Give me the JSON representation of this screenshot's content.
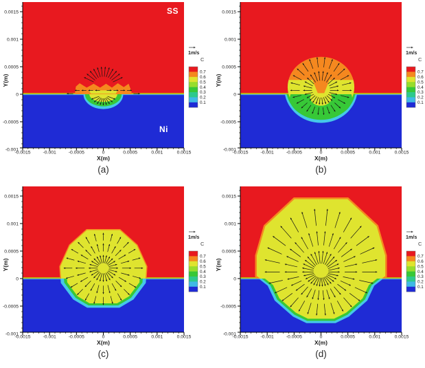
{
  "figure": {
    "region_labels": {
      "top": "SS",
      "bottom": "Ni"
    }
  },
  "axes": {
    "xlabel": "X(m)",
    "ylabel": "Y(m)",
    "xlim": [
      -0.0015,
      0.0015
    ],
    "xticks": [
      -0.0015,
      -0.001,
      -0.0005,
      0,
      0.0005,
      0.001,
      0.0015
    ],
    "xtick_labels": [
      "-0.0015",
      "-0.001",
      "-0.0005",
      "0",
      "0.0005",
      "0.001",
      "0.0015"
    ],
    "yticks": [
      0.0015,
      0.001,
      0.0005,
      0,
      -0.0005,
      -0.001
    ],
    "ytick_labels": [
      "0.0015",
      "0.001",
      "0.0005",
      "0",
      "-0.0005",
      "-0.001"
    ],
    "minor_tick_step": 0.0001
  },
  "colorbar": {
    "title": "C",
    "tick_labels": [
      "0.7",
      "0.6",
      "0.5",
      "0.4",
      "0.3",
      "0.2",
      "0.1"
    ],
    "band_colors_top_to_bottom": [
      "#e8191f",
      "#f5881f",
      "#dfe42f",
      "#97dd2c",
      "#37c837",
      "#2dc98c",
      "#3fb9e6",
      "#1f2bd5"
    ]
  },
  "vector_scale_label": "1m/s",
  "colors": {
    "ss_region": "#e8191f",
    "ni_region": "#1f2bd5",
    "interface_top": "#b3e114",
    "interface_bottom": "#49c6e8",
    "pool_orange": "#f5881f",
    "pool_yellow": "#dfe42f",
    "pool_green": "#37c837",
    "pool_cyan": "#45c8e8",
    "vector": "#141414",
    "text": "#222222"
  },
  "chart_data": [
    {
      "id": "a",
      "type": "contour-vector",
      "caption": "(a)",
      "show_region_labels": true,
      "pool": [
        {
          "type": "poly",
          "fill": "orange",
          "points": [
            [
              -0.00053,
              0
            ],
            [
              -0.00051,
              0.00014
            ],
            [
              -0.00044,
              0.0002
            ],
            [
              -0.00031,
              0.00012
            ],
            [
              -0.00018,
              0.00019
            ],
            [
              -6e-05,
              0.00012
            ],
            [
              5e-05,
              0.00019
            ],
            [
              0.00016,
              0.00012
            ],
            [
              0.00027,
              0.0002
            ],
            [
              0.00038,
              0.00013
            ],
            [
              0.00047,
              0.00019
            ],
            [
              0.00052,
              6e-05
            ],
            [
              0.00053,
              0
            ]
          ]
        },
        {
          "type": "ellipse",
          "fill": "cyan",
          "cx": 0,
          "cy": 0,
          "rx": 0.00037,
          "ry": 0.00027,
          "clip": "below"
        },
        {
          "type": "ellipse",
          "fill": "green",
          "cx": 0,
          "cy": 0,
          "rx": 0.00034,
          "ry": 0.00022,
          "clip": "below"
        },
        {
          "type": "poly",
          "fill": "yellow",
          "points": [
            [
              -0.00027,
              7e-05
            ],
            [
              0.00027,
              7e-05
            ],
            [
              0.00023,
              1e-05
            ],
            [
              -0.00023,
              1e-05
            ]
          ]
        },
        {
          "type": "ellipse",
          "fill": "yellow",
          "cx": 0,
          "cy": 0,
          "rx": 0.00026,
          "ry": 0.00014,
          "clip": "below"
        }
      ],
      "vectors": [
        {
          "kind": "radial",
          "cx": 0,
          "cy": 0.00014,
          "a0": 25,
          "a1": 155,
          "n": 12,
          "rings": [
            [
              0.5,
              1.0
            ]
          ],
          "r_up": 0.00036,
          "r_side": 0.00042,
          "r_down": 0.0002
        },
        {
          "kind": "row",
          "y": 7e-05,
          "x0": -0.00044,
          "x1": 0.00044,
          "n": 8,
          "len": 9e-05
        },
        {
          "kind": "radial",
          "cx": 0,
          "cy": -1e-05,
          "a0": 200,
          "a1": 340,
          "n": 9,
          "rings": [
            [
              0.35,
              1.0
            ]
          ],
          "r_up": 0.0002,
          "r_side": 0.00026,
          "r_down": 0.00019
        },
        {
          "kind": "row",
          "y": 1e-05,
          "x0": -0.00056,
          "x1": 0.00056,
          "n": 2,
          "len": 0.00012
        }
      ]
    },
    {
      "id": "b",
      "type": "contour-vector",
      "caption": "(b)",
      "show_region_labels": false,
      "pool": [
        {
          "type": "ellipse",
          "fill": "cyan",
          "cx": 0,
          "cy": 0.0001,
          "rx": 0.00068,
          "ry": 0.00062,
          "clip": "below"
        },
        {
          "type": "ellipse",
          "fill": "green",
          "cx": 0,
          "cy": 0.00011,
          "rx": 0.00065,
          "ry": 0.000575,
          "clip": "below"
        },
        {
          "type": "ellipse",
          "fill": "yellow",
          "cx": 0,
          "cy": 0.00013,
          "rx": 0.00062,
          "ry": 0.00054
        },
        {
          "type": "ellipse",
          "fill": "orange",
          "cx": 0,
          "cy": 0.00016,
          "rx": 0.00061,
          "ry": 0.00052,
          "clip_above_y": 0.00026
        },
        {
          "type": "ellipse",
          "fill": "green",
          "cx": 0,
          "cy": -8e-05,
          "rx": 0.00058,
          "ry": 0.00036,
          "clip": "below"
        },
        {
          "type": "ellipse",
          "fill": "yellow",
          "cx": 0,
          "cy": -6e-05,
          "rx": 0.0002,
          "ry": 0.00015,
          "clip": "below"
        },
        {
          "type": "poly",
          "fill": "orange",
          "points": [
            [
              -0.00017,
              0.00029
            ],
            [
              0.00017,
              0.00029
            ],
            [
              6e-05,
              2e-05
            ],
            [
              -6e-05,
              2e-05
            ]
          ]
        }
      ],
      "vectors": [
        {
          "kind": "radial",
          "cx": 0,
          "cy": 7e-05,
          "a0": 0,
          "a1": 346,
          "n": 26,
          "rings": [
            [
              0.28,
              0.55
            ],
            [
              0.66,
              0.95
            ]
          ],
          "r_up": 0.00064,
          "r_side": 0.0006,
          "r_down": 0.00047
        }
      ]
    },
    {
      "id": "c",
      "type": "contour-vector",
      "caption": "(c)",
      "show_region_labels": false,
      "pool": [
        {
          "type": "poly",
          "fill": "cyan",
          "clip": "below",
          "points": [
            [
              -0.00031,
              0.00089
            ],
            [
              0.00031,
              0.00089
            ],
            [
              0.00063,
              0.00061
            ],
            [
              0.00081,
              0.00022
            ],
            [
              0.00079,
              -8e-05
            ],
            [
              0.00056,
              -0.00038
            ],
            [
              0.0003,
              -0.00053
            ],
            [
              -0.0003,
              -0.00053
            ],
            [
              -0.00056,
              -0.00038
            ],
            [
              -0.00079,
              -8e-05
            ],
            [
              -0.00081,
              0.00022
            ],
            [
              -0.00063,
              0.00061
            ]
          ]
        },
        {
          "type": "poly",
          "fill": "green",
          "clip": "below",
          "scale": 0.92,
          "points": [
            [
              -0.00031,
              0.00089
            ],
            [
              0.00031,
              0.00089
            ],
            [
              0.00063,
              0.00061
            ],
            [
              0.00081,
              0.00022
            ],
            [
              0.00079,
              -8e-05
            ],
            [
              0.00056,
              -0.00038
            ],
            [
              0.0003,
              -0.00053
            ],
            [
              -0.0003,
              -0.00053
            ],
            [
              -0.00056,
              -0.00038
            ],
            [
              -0.00079,
              -8e-05
            ],
            [
              -0.00081,
              0.00022
            ],
            [
              -0.00063,
              0.00061
            ]
          ]
        },
        {
          "type": "poly",
          "fill": "yellow",
          "clip": "below",
          "scale": 0.85,
          "points": [
            [
              -0.00031,
              0.00089
            ],
            [
              0.00031,
              0.00089
            ],
            [
              0.00063,
              0.00061
            ],
            [
              0.00081,
              0.00022
            ],
            [
              0.00079,
              -8e-05
            ],
            [
              0.00056,
              -0.00038
            ],
            [
              0.0003,
              -0.00053
            ],
            [
              -0.0003,
              -0.00053
            ],
            [
              -0.00056,
              -0.00038
            ],
            [
              -0.00079,
              -8e-05
            ],
            [
              -0.00081,
              0.00022
            ],
            [
              -0.00063,
              0.00061
            ]
          ]
        },
        {
          "type": "poly",
          "fill": "yellow",
          "clip": "above",
          "stroke": "orange",
          "stroke_w": 1.5,
          "points": [
            [
              -0.00031,
              0.00089
            ],
            [
              0.00031,
              0.00089
            ],
            [
              0.00063,
              0.00061
            ],
            [
              0.00081,
              0.00022
            ],
            [
              0.00079,
              -8e-05
            ],
            [
              0.00056,
              -0.00038
            ],
            [
              0.0003,
              -0.00053
            ],
            [
              -0.0003,
              -0.00053
            ],
            [
              -0.00056,
              -0.00038
            ],
            [
              -0.00079,
              -8e-05
            ],
            [
              -0.00081,
              0.00022
            ],
            [
              -0.00063,
              0.00061
            ]
          ]
        }
      ],
      "vectors": [
        {
          "kind": "radial",
          "cx": 0,
          "cy": 0.00019,
          "a0": 0,
          "a1": 345,
          "n": 24,
          "rings": [
            [
              0.14,
              0.36
            ],
            [
              0.46,
              0.68
            ],
            [
              0.76,
              0.97
            ]
          ],
          "r_up": 0.00066,
          "r_side": 0.00076,
          "r_down": 0.00069
        }
      ]
    },
    {
      "id": "d",
      "type": "contour-vector",
      "caption": "(d)",
      "show_region_labels": false,
      "pool": [
        {
          "type": "poly",
          "fill": "cyan",
          "clip": "below",
          "points": [
            [
              -0.0005,
              0.00146
            ],
            [
              0.0005,
              0.00146
            ],
            [
              0.00105,
              0.00096
            ],
            [
              0.00121,
              0.00042
            ],
            [
              0.00121,
              4e-05
            ],
            [
              0.00099,
              -0.00013
            ],
            [
              0.00086,
              -0.0004
            ],
            [
              0.00052,
              -0.00069
            ],
            [
              0.00027,
              -0.00081
            ],
            [
              -0.00027,
              -0.00081
            ],
            [
              -0.00052,
              -0.00069
            ],
            [
              -0.00086,
              -0.0004
            ],
            [
              -0.00099,
              -0.00013
            ],
            [
              -0.00121,
              4e-05
            ],
            [
              -0.00121,
              0.00042
            ],
            [
              -0.00105,
              0.00096
            ]
          ]
        },
        {
          "type": "poly",
          "fill": "green",
          "clip": "below",
          "scale": 0.95,
          "points": [
            [
              -0.0005,
              0.00146
            ],
            [
              0.0005,
              0.00146
            ],
            [
              0.00105,
              0.00096
            ],
            [
              0.00121,
              0.00042
            ],
            [
              0.00121,
              4e-05
            ],
            [
              0.00099,
              -0.00013
            ],
            [
              0.00086,
              -0.0004
            ],
            [
              0.00052,
              -0.00069
            ],
            [
              0.00027,
              -0.00081
            ],
            [
              -0.00027,
              -0.00081
            ],
            [
              -0.00052,
              -0.00069
            ],
            [
              -0.00086,
              -0.0004
            ],
            [
              -0.00099,
              -0.00013
            ],
            [
              -0.00121,
              4e-05
            ],
            [
              -0.00121,
              0.00042
            ],
            [
              -0.00105,
              0.00096
            ]
          ]
        },
        {
          "type": "poly",
          "fill": "yellow",
          "clip": "below",
          "scale": 0.9,
          "points": [
            [
              -0.0005,
              0.00146
            ],
            [
              0.0005,
              0.00146
            ],
            [
              0.00105,
              0.00096
            ],
            [
              0.00121,
              0.00042
            ],
            [
              0.00121,
              4e-05
            ],
            [
              0.00099,
              -0.00013
            ],
            [
              0.00086,
              -0.0004
            ],
            [
              0.00052,
              -0.00069
            ],
            [
              0.00027,
              -0.00081
            ],
            [
              -0.00027,
              -0.00081
            ],
            [
              -0.00052,
              -0.00069
            ],
            [
              -0.00086,
              -0.0004
            ],
            [
              -0.00099,
              -0.00013
            ],
            [
              -0.00121,
              4e-05
            ],
            [
              -0.00121,
              0.00042
            ],
            [
              -0.00105,
              0.00096
            ]
          ]
        },
        {
          "type": "poly",
          "fill": "yellow",
          "clip": "above",
          "stroke": "orange",
          "stroke_w": 2.5,
          "points": [
            [
              -0.0005,
              0.00146
            ],
            [
              0.0005,
              0.00146
            ],
            [
              0.00105,
              0.00096
            ],
            [
              0.00121,
              0.00042
            ],
            [
              0.00121,
              4e-05
            ],
            [
              0.00099,
              -0.00013
            ],
            [
              0.00086,
              -0.0004
            ],
            [
              0.00052,
              -0.00069
            ],
            [
              0.00027,
              -0.00081
            ],
            [
              -0.00027,
              -0.00081
            ],
            [
              -0.00052,
              -0.00069
            ],
            [
              -0.00086,
              -0.0004
            ],
            [
              -0.00099,
              -0.00013
            ],
            [
              -0.00121,
              4e-05
            ],
            [
              -0.00121,
              0.00042
            ],
            [
              -0.00105,
              0.00096
            ]
          ]
        }
      ],
      "vectors": [
        {
          "kind": "radial",
          "cx": 0,
          "cy": 0.00012,
          "a0": 0,
          "a1": 348,
          "n": 30,
          "rings": [
            [
              0.12,
              0.3
            ],
            [
              0.38,
              0.58
            ],
            [
              0.66,
              0.9
            ]
          ],
          "r_up": 0.00128,
          "r_side": 0.00116,
          "r_down": 0.00088
        }
      ]
    }
  ]
}
